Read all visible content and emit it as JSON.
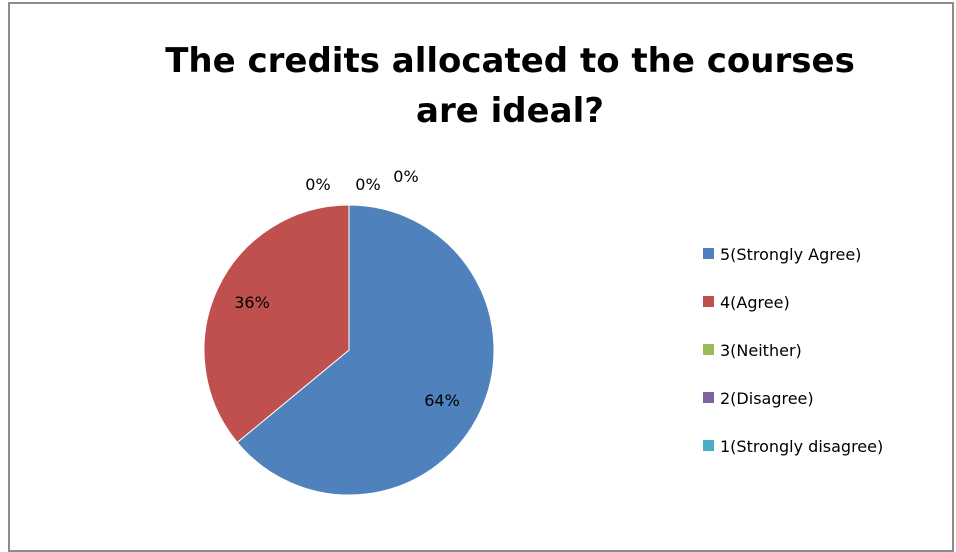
{
  "chart_data": {
    "type": "pie",
    "title_lines": [
      "The credits allocated to the courses",
      "are ideal?"
    ],
    "slices": [
      {
        "label": "5(Strongly Agree)",
        "value": 64,
        "display": "64%",
        "color": "#4f81bd"
      },
      {
        "label": "4(Agree)",
        "value": 36,
        "display": "36%",
        "color": "#c0504d"
      },
      {
        "label": "3(Neither)",
        "value": 0,
        "display": "0%",
        "color": "#9bbb59"
      },
      {
        "label": "2(Disagree)",
        "value": 0,
        "display": "0%",
        "color": "#8064a2"
      },
      {
        "label": "1(Strongly disagree)",
        "value": 0,
        "display": "0%",
        "color": "#4bacc6"
      }
    ],
    "legend_position": "right"
  }
}
